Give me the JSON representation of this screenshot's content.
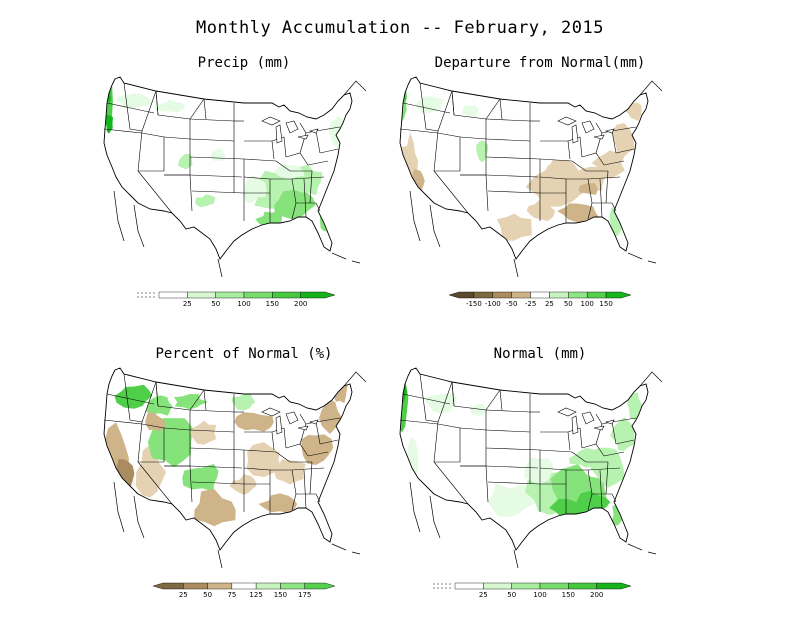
{
  "title": "Monthly Accumulation -- February, 2015",
  "colors": {
    "g1": "#e6fbe3",
    "g2": "#b8f2b0",
    "g3": "#86e37c",
    "g4": "#4fcf49",
    "g5": "#12b51a",
    "b1": "#e5d2b2",
    "b2": "#cfb48a",
    "b3": "#ab8c60",
    "b4": "#7e6a42",
    "b5": "#5a4a2d",
    "outline": "#000000"
  },
  "panels": [
    {
      "title": "Precip (mm)",
      "legend": {
        "ticks": [
          "25",
          "50",
          "100",
          "150",
          "200"
        ],
        "colors": [
          "#ffffff",
          "#d7f7d1",
          "#a8ec9f",
          "#79dd6e",
          "#47c83f",
          "#17b11b"
        ],
        "left_arrow": false
      },
      "fill": "precip"
    },
    {
      "title": "Departure from Normal(mm)",
      "legend": {
        "ticks": [
          "-150",
          "-100",
          "-50",
          "-25",
          "25",
          "50",
          "100",
          "150"
        ],
        "colors": [
          "#5a4a2d",
          "#7e6a42",
          "#ab8c60",
          "#cfb48a",
          "#ffffff",
          "#c7f3bf",
          "#8fe586",
          "#55d04d",
          "#18b41c"
        ],
        "left_arrow": true
      },
      "fill": "departure"
    },
    {
      "title": "Percent of Normal (%)",
      "legend": {
        "ticks": [
          "25",
          "50",
          "75",
          "125",
          "150",
          "175"
        ],
        "colors": [
          "#7e6a42",
          "#ab8c60",
          "#cfb48a",
          "#ffffff",
          "#c7f3bf",
          "#8fe586",
          "#55d04d"
        ],
        "left_arrow": true
      },
      "fill": "percent"
    },
    {
      "title": "Normal (mm)",
      "legend": {
        "ticks": [
          "25",
          "50",
          "100",
          "150",
          "200"
        ],
        "colors": [
          "#ffffff",
          "#d7f7d1",
          "#a8ec9f",
          "#79dd6e",
          "#47c83f",
          "#17b11b"
        ],
        "left_arrow": false
      },
      "fill": "normal"
    }
  ]
}
